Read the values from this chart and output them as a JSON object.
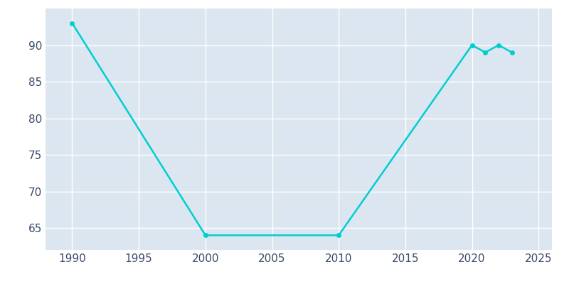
{
  "years": [
    1990,
    2000,
    2010,
    2020,
    2021,
    2022,
    2023
  ],
  "population": [
    93,
    64,
    64,
    90,
    89,
    90,
    89
  ],
  "line_color": "#00CED1",
  "marker_color": "#00CED1",
  "fig_bg_color": "#ffffff",
  "plot_bg_color": "#dce6f0",
  "xlim": [
    1988,
    2026
  ],
  "ylim": [
    62,
    95
  ],
  "xticks": [
    1990,
    1995,
    2000,
    2005,
    2010,
    2015,
    2020,
    2025
  ],
  "yticks": [
    65,
    70,
    75,
    80,
    85,
    90
  ],
  "grid_color": "#ffffff",
  "tick_color": "#3a4a6a",
  "tick_fontsize": 11,
  "linewidth": 1.8,
  "markersize": 4
}
